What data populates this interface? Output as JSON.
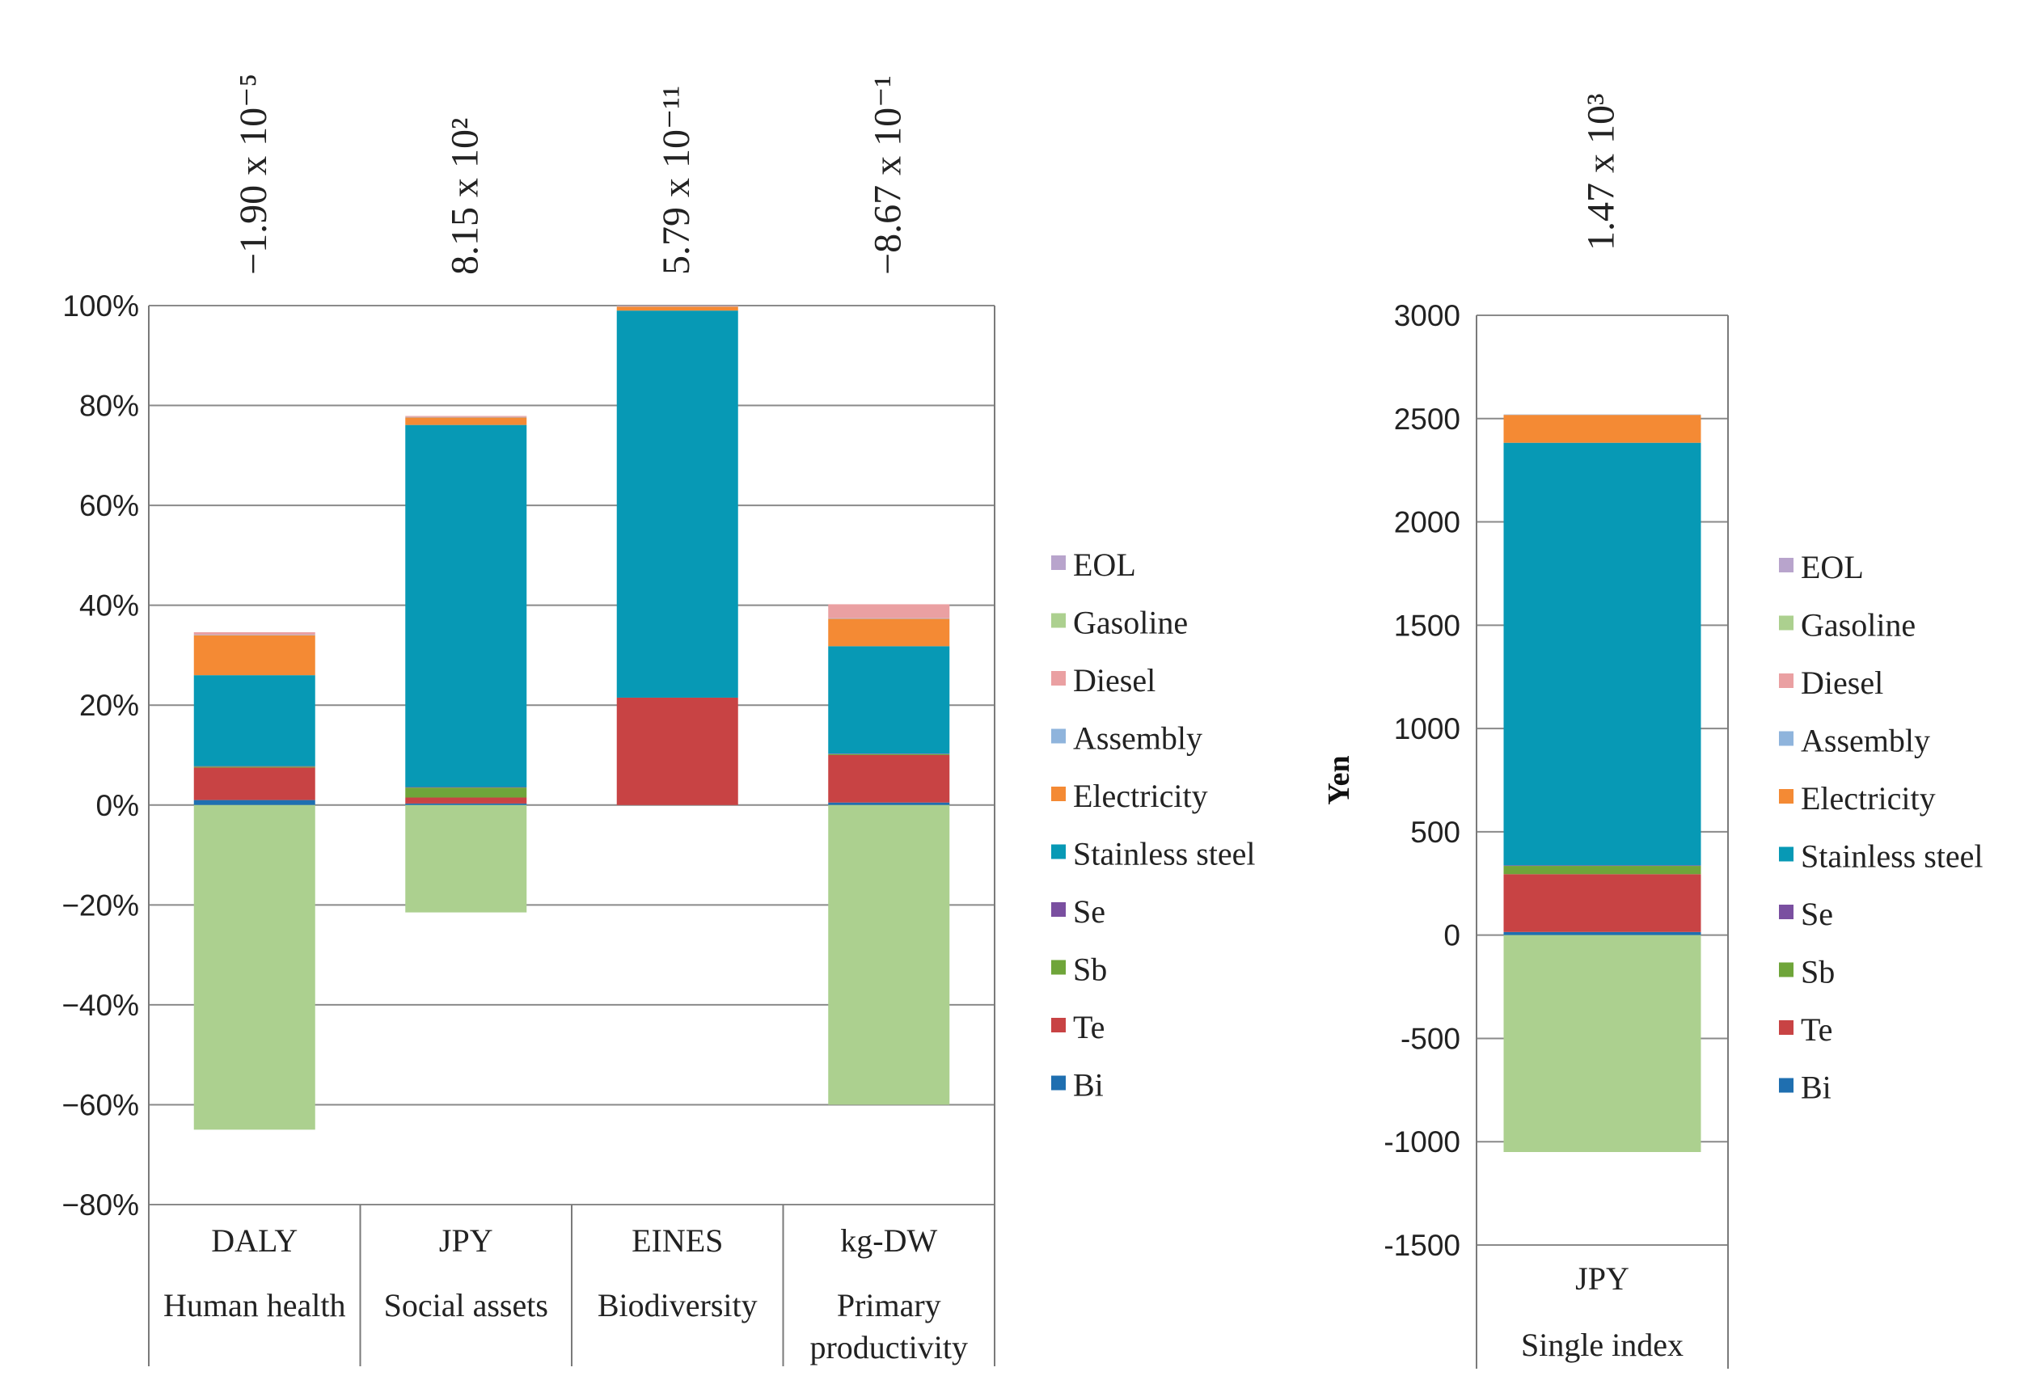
{
  "colors": {
    "Bi": "#1f6fb0",
    "Te": "#c84344",
    "Sb": "#6fa53a",
    "Se": "#7a4fa0",
    "Stainless steel": "#0799b5",
    "Electricity": "#f48a34",
    "Assembly": "#8fb4dc",
    "Diesel": "#eaa0a2",
    "Gasoline": "#acd08f",
    "EOL": "#b8a4cc"
  },
  "chart_data": [
    {
      "type": "bar",
      "stacked": true,
      "ylim": [
        -80,
        100
      ],
      "yticks": [
        100,
        80,
        60,
        40,
        20,
        0,
        -20,
        -40,
        -60,
        -80
      ],
      "ytick_labels": [
        "100%",
        "80%",
        "60%",
        "40%",
        "20%",
        "0%",
        "−20%",
        "−40%",
        "−60%",
        "−80%"
      ],
      "categories": [
        {
          "unit": "DALY",
          "label": [
            "Human health"
          ],
          "total": "−1.90 x 10⁻⁵"
        },
        {
          "unit": "JPY",
          "label": [
            "Social assets"
          ],
          "total": "8.15 x 10²"
        },
        {
          "unit": "EINES",
          "label": [
            "Biodiversity"
          ],
          "total": "5.79 x 10⁻¹¹"
        },
        {
          "unit": "kg-DW",
          "label": [
            "Primary",
            "productivity"
          ],
          "total": "−8.67 x 10⁻¹"
        }
      ],
      "series": [
        {
          "name": "Bi",
          "values": [
            1.0,
            0.3,
            0.0,
            0.5
          ]
        },
        {
          "name": "Te",
          "values": [
            6.5,
            1.2,
            21.5,
            9.5
          ]
        },
        {
          "name": "Sb",
          "values": [
            0.2,
            2.0,
            0.0,
            0.2
          ]
        },
        {
          "name": "Se",
          "values": [
            0.1,
            0.1,
            0.0,
            0.1
          ]
        },
        {
          "name": "Stainless steel",
          "values": [
            18.2,
            72.5,
            77.5,
            21.5
          ]
        },
        {
          "name": "Electricity",
          "values": [
            8.0,
            1.5,
            0.8,
            5.5
          ]
        },
        {
          "name": "Assembly",
          "values": [
            0.1,
            0.1,
            0.1,
            0.1
          ]
        },
        {
          "name": "Diesel",
          "values": [
            0.5,
            0.2,
            0.1,
            2.8
          ]
        },
        {
          "name": "Gasoline",
          "values": [
            -65.0,
            -21.5,
            0.0,
            -60.0
          ]
        },
        {
          "name": "EOL",
          "values": [
            0.0,
            0.0,
            0.0,
            0.0
          ]
        }
      ],
      "legend": [
        "EOL",
        "Gasoline",
        "Diesel",
        "Assembly",
        "Electricity",
        "Stainless steel",
        "Se",
        "Sb",
        "Te",
        "Bi"
      ]
    },
    {
      "type": "bar",
      "stacked": true,
      "ylabel": "Yen",
      "ylim": [
        -1500,
        3000
      ],
      "yticks": [
        3000,
        2500,
        2000,
        1500,
        1000,
        500,
        0,
        -500,
        -1000,
        -1500
      ],
      "ytick_labels": [
        "3000",
        "2500",
        "2000",
        "1500",
        "1000",
        "500",
        "0",
        "-500",
        "-1000",
        "-1500"
      ],
      "categories": [
        {
          "unit": "JPY",
          "label": [
            "Single index"
          ],
          "total": "1.47 x 10³"
        }
      ],
      "series": [
        {
          "name": "Bi",
          "values": [
            15
          ]
        },
        {
          "name": "Te",
          "values": [
            280
          ]
        },
        {
          "name": "Sb",
          "values": [
            40
          ]
        },
        {
          "name": "Se",
          "values": [
            3
          ]
        },
        {
          "name": "Stainless steel",
          "values": [
            2045
          ]
        },
        {
          "name": "Electricity",
          "values": [
            135
          ]
        },
        {
          "name": "Assembly",
          "values": [
            2
          ]
        },
        {
          "name": "Diesel",
          "values": [
            0
          ]
        },
        {
          "name": "Gasoline",
          "values": [
            -1050
          ]
        },
        {
          "name": "EOL",
          "values": [
            0
          ]
        }
      ],
      "legend": [
        "EOL",
        "Gasoline",
        "Diesel",
        "Assembly",
        "Electricity",
        "Stainless steel",
        "Se",
        "Sb",
        "Te",
        "Bi"
      ]
    }
  ]
}
